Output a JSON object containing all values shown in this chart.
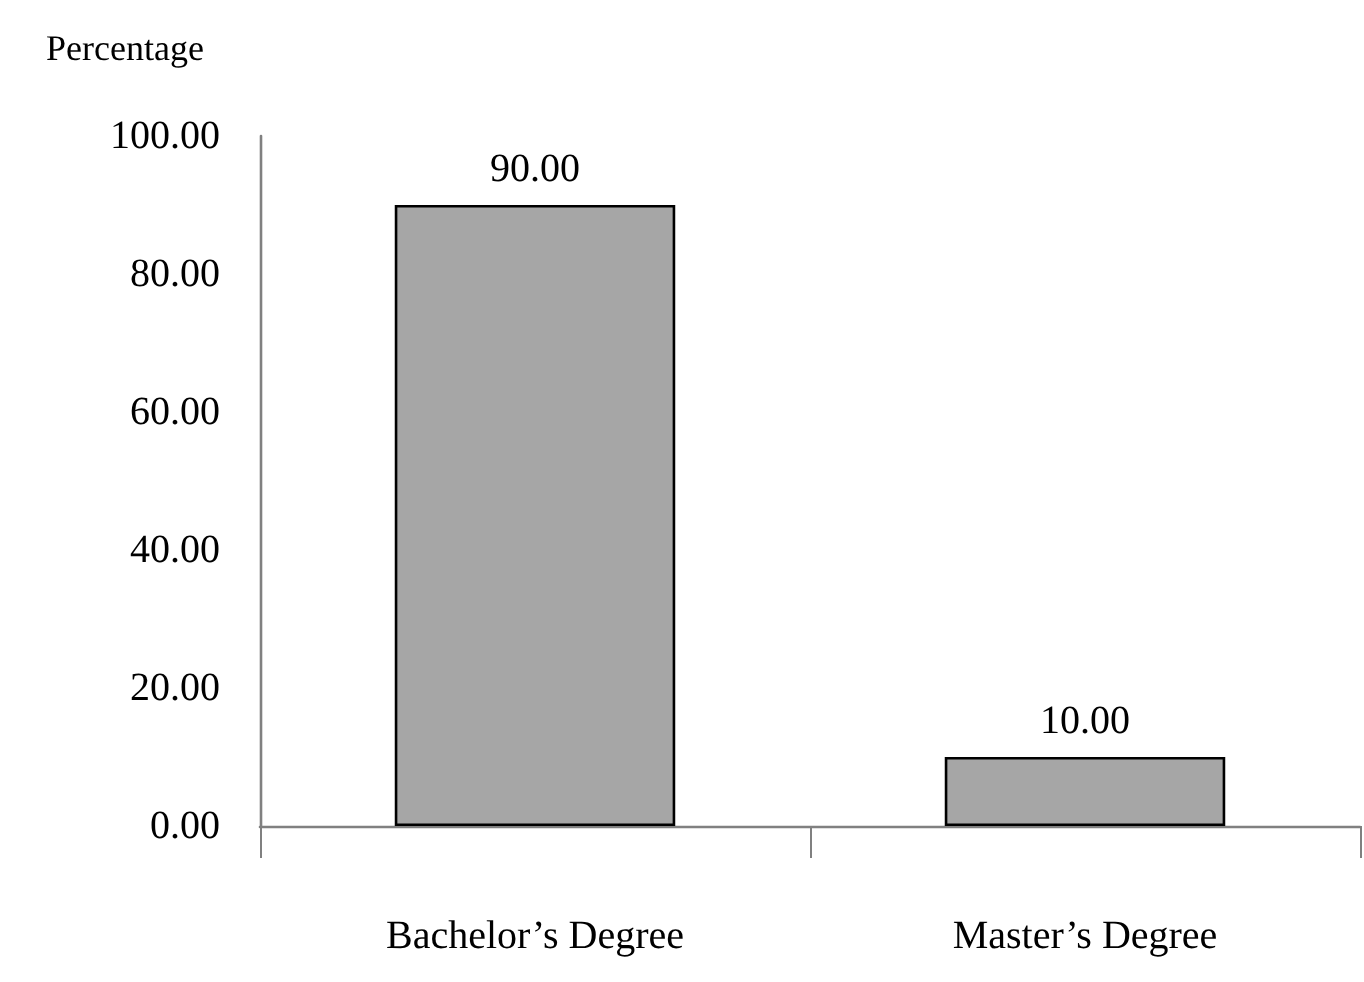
{
  "chart_data": {
    "type": "bar",
    "ylabel": "Percentage",
    "categories": [
      "Bachelor’s Degree",
      "Master’s Degree"
    ],
    "values": [
      90,
      10
    ],
    "value_labels": [
      "90.00",
      "10.00"
    ],
    "color": "#a6a6a6",
    "ylim": [
      0,
      100
    ],
    "yticks": [
      {
        "value": 0,
        "label": "0.00"
      },
      {
        "value": 20,
        "label": "20.00"
      },
      {
        "value": 40,
        "label": "40.00"
      },
      {
        "value": 60,
        "label": "60.00"
      },
      {
        "value": 80,
        "label": "80.00"
      },
      {
        "value": 100,
        "label": "100.00"
      }
    ],
    "grid": false
  }
}
